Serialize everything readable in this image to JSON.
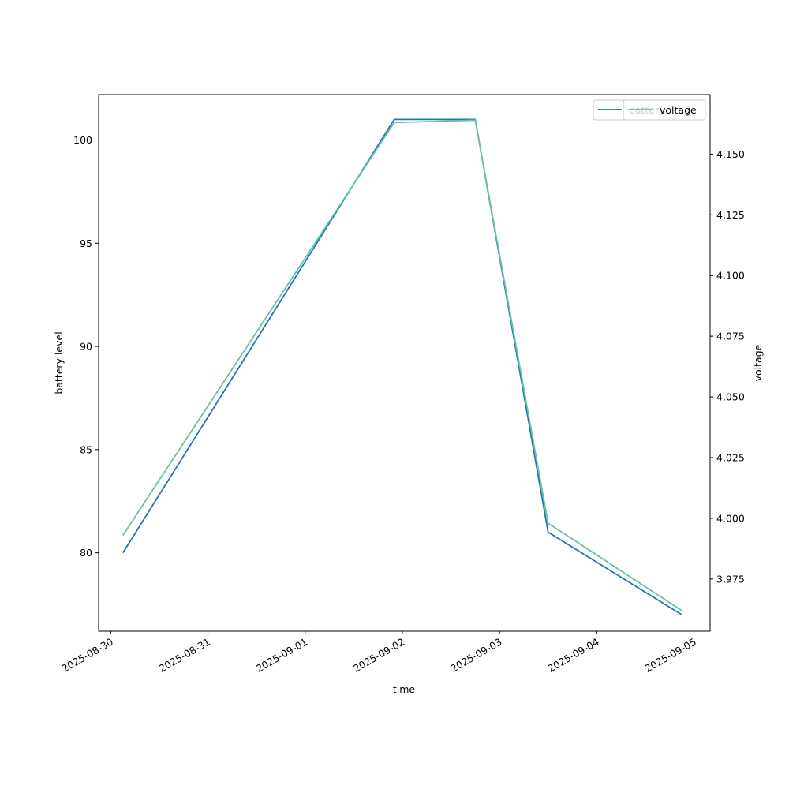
{
  "chart_data": {
    "type": "line",
    "xlabel": "time",
    "ylabel_left": "battery level",
    "ylabel_right": "voltage",
    "x_ticks": [
      "2025-08-30",
      "2025-08-31",
      "2025-09-01",
      "2025-09-02",
      "2025-09-03",
      "2025-09-04",
      "2025-09-05"
    ],
    "x_range": [
      "2025-08-29 21:00",
      "2025-09-05 04:00"
    ],
    "y_left_range": [
      76.2,
      102.2
    ],
    "y_left_ticks": [
      "80",
      "85",
      "90",
      "95",
      "100"
    ],
    "y_right_range": [
      3.9535,
      4.1745
    ],
    "y_right_ticks": [
      "3.975",
      "4.000",
      "4.025",
      "4.050",
      "4.075",
      "4.100",
      "4.125",
      "4.150"
    ],
    "series": [
      {
        "name": "battery",
        "axis": "left",
        "color": "#1f77b4",
        "x": [
          "2025-08-30 03:00",
          "2025-09-01 22:00",
          "2025-09-02 18:00",
          "2025-09-03 12:00",
          "2025-09-04 21:00"
        ],
        "y": [
          80,
          101,
          101,
          81,
          77
        ]
      },
      {
        "name": "voltage",
        "axis": "right",
        "color": "#66c2a5",
        "x": [
          "2025-08-30 03:00",
          "2025-09-01 22:00",
          "2025-09-02 18:00",
          "2025-09-03 12:00",
          "2025-09-04 21:00"
        ],
        "y": [
          3.993,
          4.163,
          4.164,
          3.998,
          3.962
        ]
      }
    ],
    "legend_placement": "top-right",
    "grid": false
  }
}
